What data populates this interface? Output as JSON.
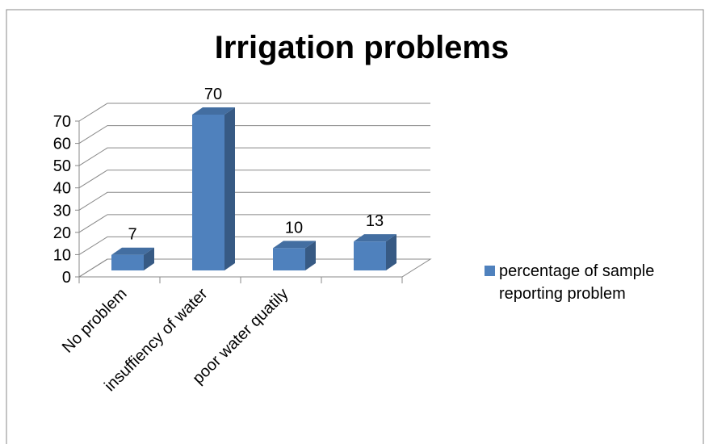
{
  "chart_data": {
    "type": "bar3d",
    "title": "Irrigation problems",
    "categories": [
      "No problem",
      "insuffiency of water",
      "poor water quatily",
      null
    ],
    "series": [
      {
        "name": "percentage of sample reporting problem",
        "color": "#4f81bd",
        "values": [
          7,
          70,
          10,
          13
        ]
      }
    ],
    "ylim": [
      0,
      70
    ],
    "yticks": [
      0,
      10,
      20,
      30,
      40,
      50,
      60,
      70
    ],
    "grid": true,
    "legend": "right"
  }
}
